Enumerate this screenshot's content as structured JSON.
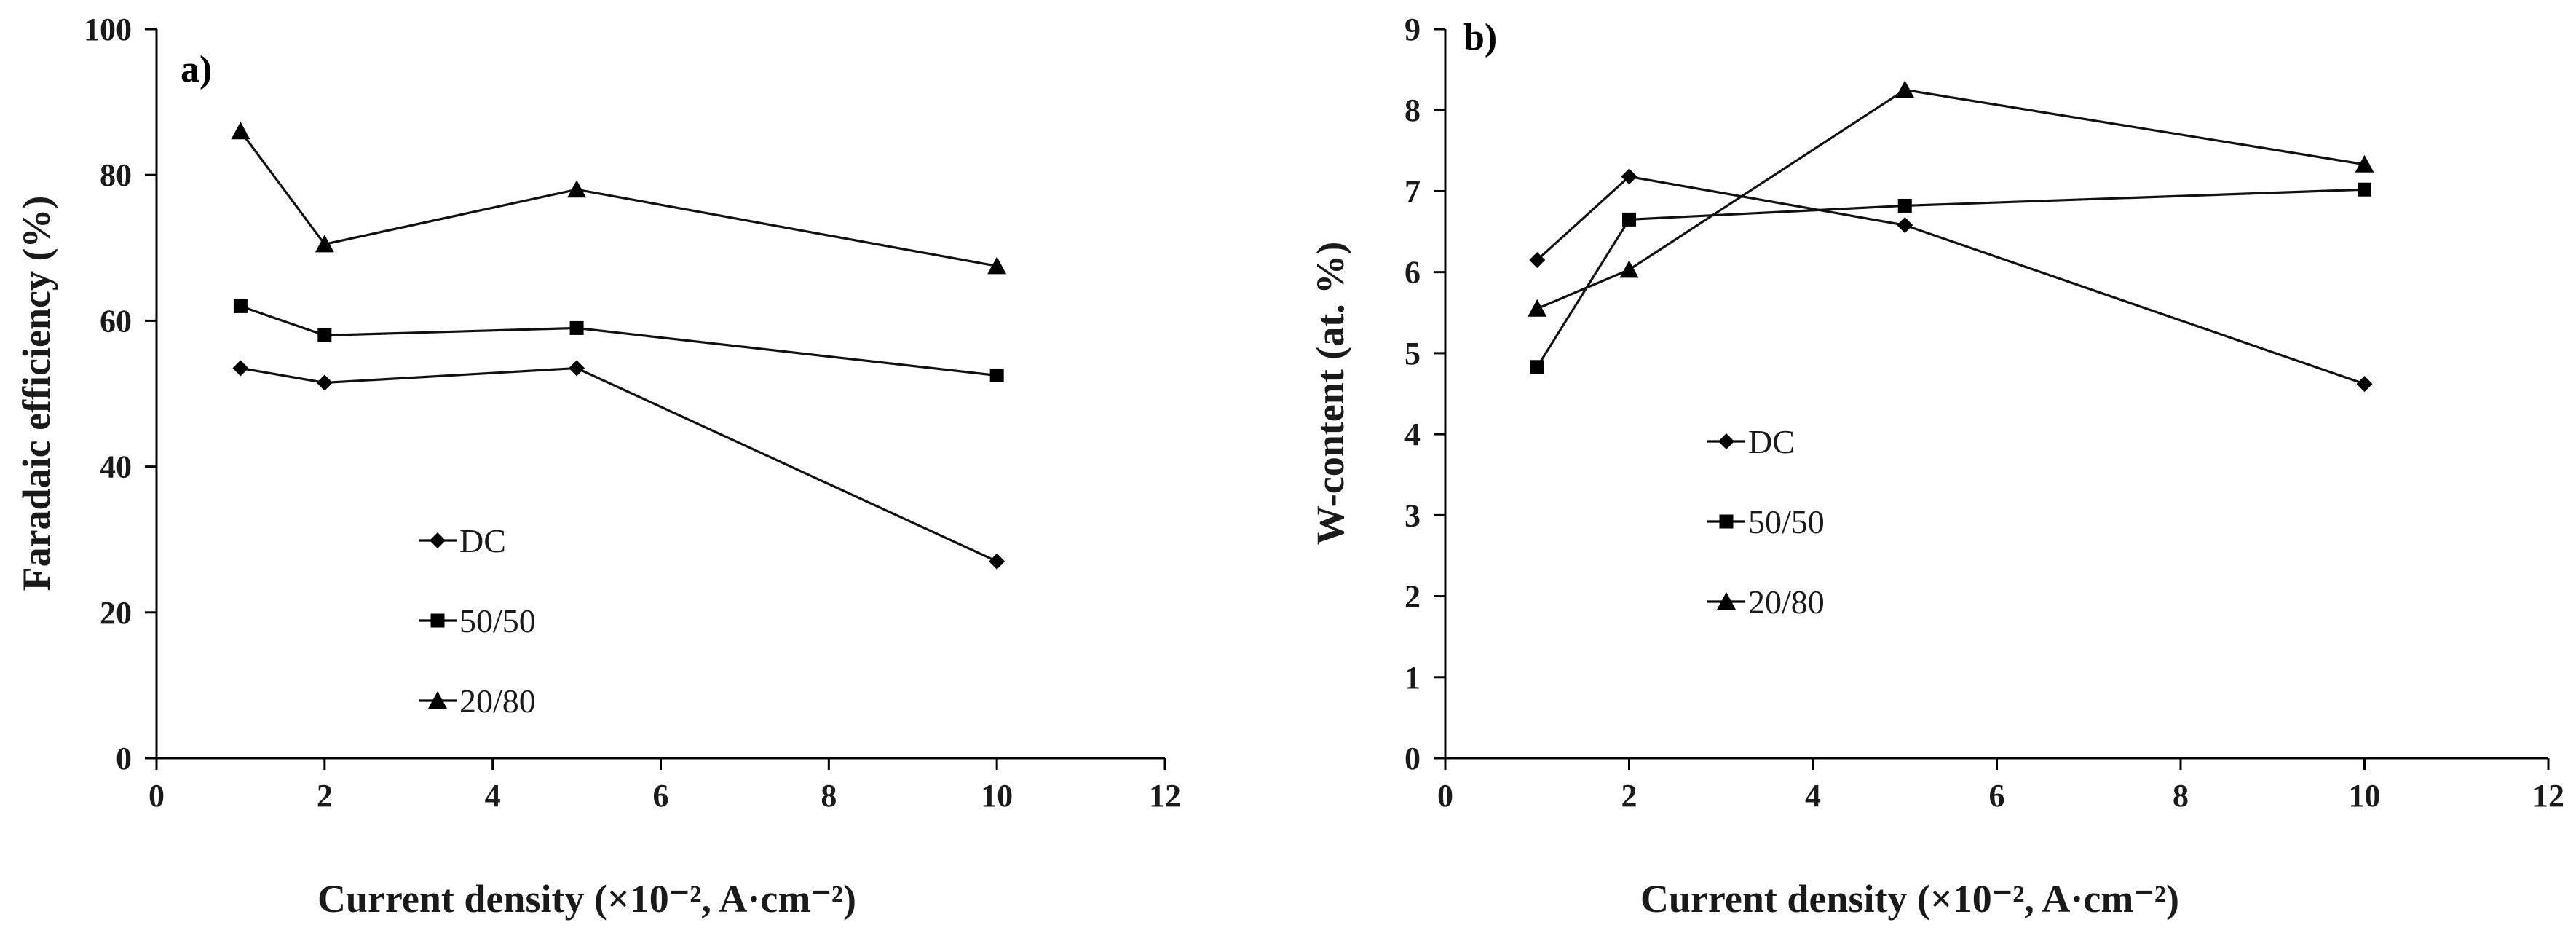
{
  "chart_data": [
    {
      "type": "line",
      "panel_label": "a)",
      "xlabel": "Current density (×10⁻², A·cm⁻²)",
      "ylabel": "Faradaic efficiency (%)",
      "xlim": [
        0,
        12
      ],
      "ylim": [
        0,
        100
      ],
      "xticks": [
        0,
        2,
        4,
        6,
        8,
        10,
        12
      ],
      "yticks": [
        0,
        20,
        40,
        60,
        80,
        100
      ],
      "legend_position": "center-left",
      "series": [
        {
          "name": "DC",
          "marker": "diamond",
          "x": [
            1,
            2,
            5,
            10
          ],
          "y": [
            53.5,
            51.5,
            53.5,
            27
          ]
        },
        {
          "name": "50/50",
          "marker": "square",
          "x": [
            1,
            2,
            5,
            10
          ],
          "y": [
            62,
            58,
            59,
            52.5
          ]
        },
        {
          "name": "20/80",
          "marker": "triangle",
          "x": [
            1,
            2,
            5,
            10
          ],
          "y": [
            86,
            70.5,
            78,
            67.5
          ]
        }
      ]
    },
    {
      "type": "line",
      "panel_label": "b)",
      "xlabel": "Current density (×10⁻², A·cm⁻²)",
      "ylabel": "W-content (at. %)",
      "xlim": [
        0,
        12
      ],
      "ylim": [
        0,
        9
      ],
      "xticks": [
        0,
        2,
        4,
        6,
        8,
        10,
        12
      ],
      "yticks": [
        0,
        1,
        2,
        3,
        4,
        5,
        6,
        7,
        8,
        9
      ],
      "legend_position": "center-left",
      "series": [
        {
          "name": "DC",
          "marker": "diamond",
          "x": [
            1,
            2,
            5,
            10
          ],
          "y": [
            6.15,
            7.18,
            6.58,
            4.62
          ]
        },
        {
          "name": "50/50",
          "marker": "square",
          "x": [
            1,
            2,
            5,
            10
          ],
          "y": [
            4.83,
            6.65,
            6.82,
            7.02
          ]
        },
        {
          "name": "20/80",
          "marker": "triangle",
          "x": [
            1,
            2,
            5,
            10
          ],
          "y": [
            5.55,
            6.03,
            8.25,
            7.33
          ]
        }
      ]
    }
  ]
}
